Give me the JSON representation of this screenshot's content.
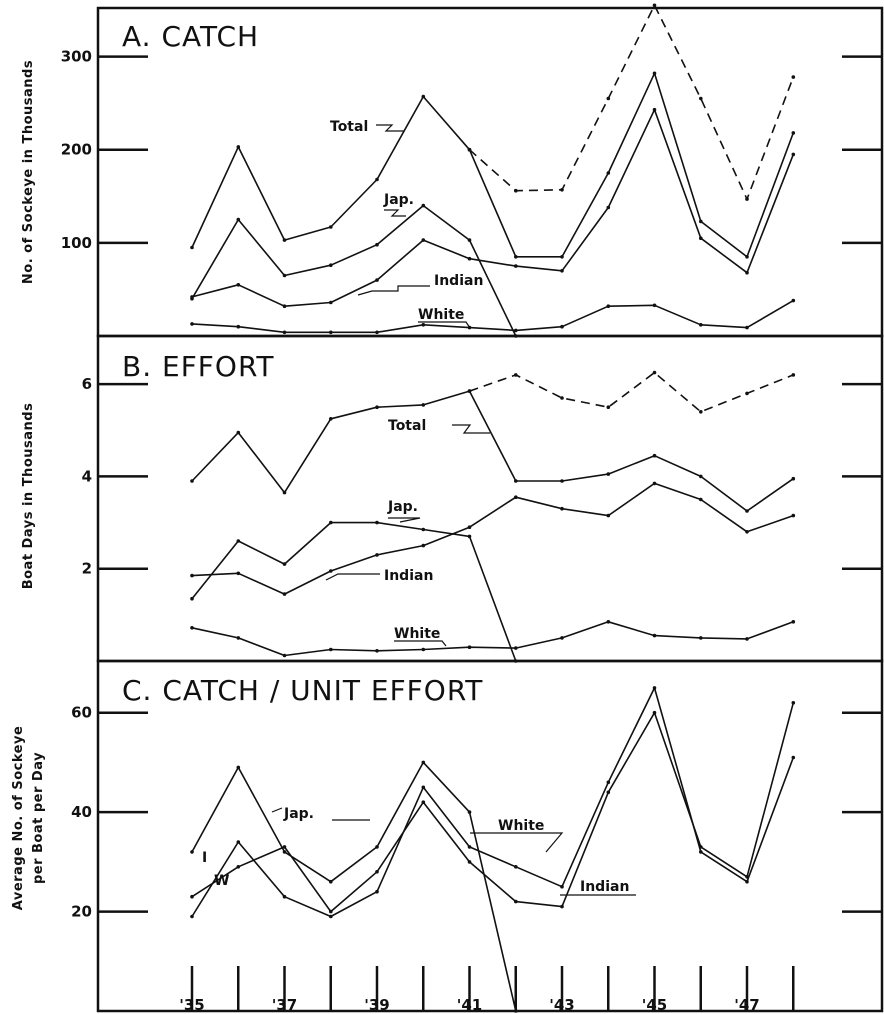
{
  "chart_data": [
    {
      "type": "line",
      "title": "A. CATCH",
      "ylabel": "No. of Sockeye in Thousands",
      "xlabel": "",
      "x": [
        1935,
        1936,
        1937,
        1938,
        1939,
        1940,
        1941,
        1942,
        1943,
        1944,
        1945,
        1946,
        1947,
        1948
      ],
      "ylim": [
        0,
        350
      ],
      "y_ticks": [
        100,
        200,
        300
      ],
      "y_tick_labels": [
        "100",
        "200",
        "300"
      ],
      "series": [
        {
          "name": "Total",
          "values": [
            95,
            203,
            103,
            117,
            168,
            257,
            200,
            156,
            157,
            255,
            355,
            255,
            147,
            278
          ],
          "dashed_from": 1941
        },
        {
          "name": "Jap.",
          "values": [
            40,
            125,
            65,
            76,
            98,
            140,
            103,
            0,
            null,
            null,
            null,
            null,
            null,
            null
          ]
        },
        {
          "name": "Indian",
          "values": [
            42,
            55,
            32,
            36,
            60,
            103,
            83,
            75,
            70,
            138,
            243,
            105,
            68,
            195
          ]
        },
        {
          "name": "White",
          "values": [
            13,
            10,
            4,
            4,
            4,
            12,
            9,
            6,
            10,
            32,
            33,
            12,
            9,
            38
          ]
        },
        {
          "name": "",
          "values": [
            null,
            null,
            null,
            null,
            null,
            null,
            200,
            85,
            85,
            175,
            282,
            123,
            85,
            218
          ]
        }
      ]
    },
    {
      "type": "line",
      "title": "B. EFFORT",
      "ylabel": "Boat Days in Thousands",
      "xlabel": "",
      "x": [
        1935,
        1936,
        1937,
        1938,
        1939,
        1940,
        1941,
        1942,
        1943,
        1944,
        1945,
        1946,
        1947,
        1948
      ],
      "ylim": [
        0,
        7
      ],
      "y_ticks": [
        2,
        4,
        6
      ],
      "y_tick_labels": [
        "2",
        "4",
        "6"
      ],
      "series": [
        {
          "name": "Total",
          "values": [
            3.9,
            4.95,
            3.65,
            5.25,
            5.5,
            5.55,
            5.85,
            6.2,
            5.7,
            5.5,
            6.25,
            5.4,
            5.8,
            6.2
          ],
          "dashed_from": 1941
        },
        {
          "name": "Jap.",
          "values": [
            1.35,
            2.6,
            2.1,
            3.0,
            3.0,
            2.85,
            2.7,
            0,
            null,
            null,
            null,
            null,
            null,
            null
          ]
        },
        {
          "name": "Indian",
          "values": [
            1.85,
            1.9,
            1.45,
            1.95,
            2.3,
            2.5,
            2.9,
            3.55,
            3.3,
            3.15,
            3.85,
            3.5,
            2.8,
            3.15
          ]
        },
        {
          "name": "White",
          "values": [
            0.72,
            0.5,
            0.12,
            0.25,
            0.22,
            0.25,
            0.3,
            0.28,
            0.5,
            0.85,
            0.55,
            0.5,
            0.48,
            0.85
          ]
        },
        {
          "name": "",
          "values": [
            null,
            null,
            null,
            null,
            null,
            null,
            5.85,
            3.9,
            3.9,
            4.05,
            4.45,
            4.0,
            3.25,
            3.95
          ]
        }
      ]
    },
    {
      "type": "line",
      "title": "C. CATCH / UNIT EFFORT",
      "ylabel": [
        "Average No. of Sockeye",
        "per Boat per Day"
      ],
      "xlabel": "",
      "x": [
        1935,
        1936,
        1937,
        1938,
        1939,
        1940,
        1941,
        1942,
        1943,
        1944,
        1945,
        1946,
        1947,
        1948
      ],
      "ylim": [
        0,
        70
      ],
      "y_ticks": [
        20,
        40,
        60
      ],
      "y_tick_labels": [
        "20",
        "40",
        "60"
      ],
      "x_ticks": [
        1935,
        1936,
        1937,
        1938,
        1939,
        1940,
        1941,
        1942,
        1943,
        1944,
        1945,
        1946,
        1947,
        1948
      ],
      "x_tick_labels": [
        "'35",
        "",
        "'37",
        "",
        "'39",
        "",
        "'41",
        "",
        "'43",
        "",
        "'45",
        "",
        "'47",
        ""
      ],
      "series": [
        {
          "name": "Jap.",
          "values": [
            32,
            49,
            32,
            26,
            33,
            50,
            40,
            0,
            null,
            null,
            null,
            null,
            null,
            null
          ]
        },
        {
          "name": "Indian",
          "values": [
            23,
            29,
            33,
            20,
            28,
            42,
            30,
            22,
            21,
            44,
            60,
            33,
            27,
            62
          ]
        },
        {
          "name": "White",
          "values": [
            19,
            34,
            23,
            19,
            24,
            45,
            33,
            29,
            25,
            46,
            65,
            32,
            26,
            51
          ]
        }
      ],
      "series_markers": {
        "Indian": "I",
        "White": "W"
      }
    }
  ]
}
